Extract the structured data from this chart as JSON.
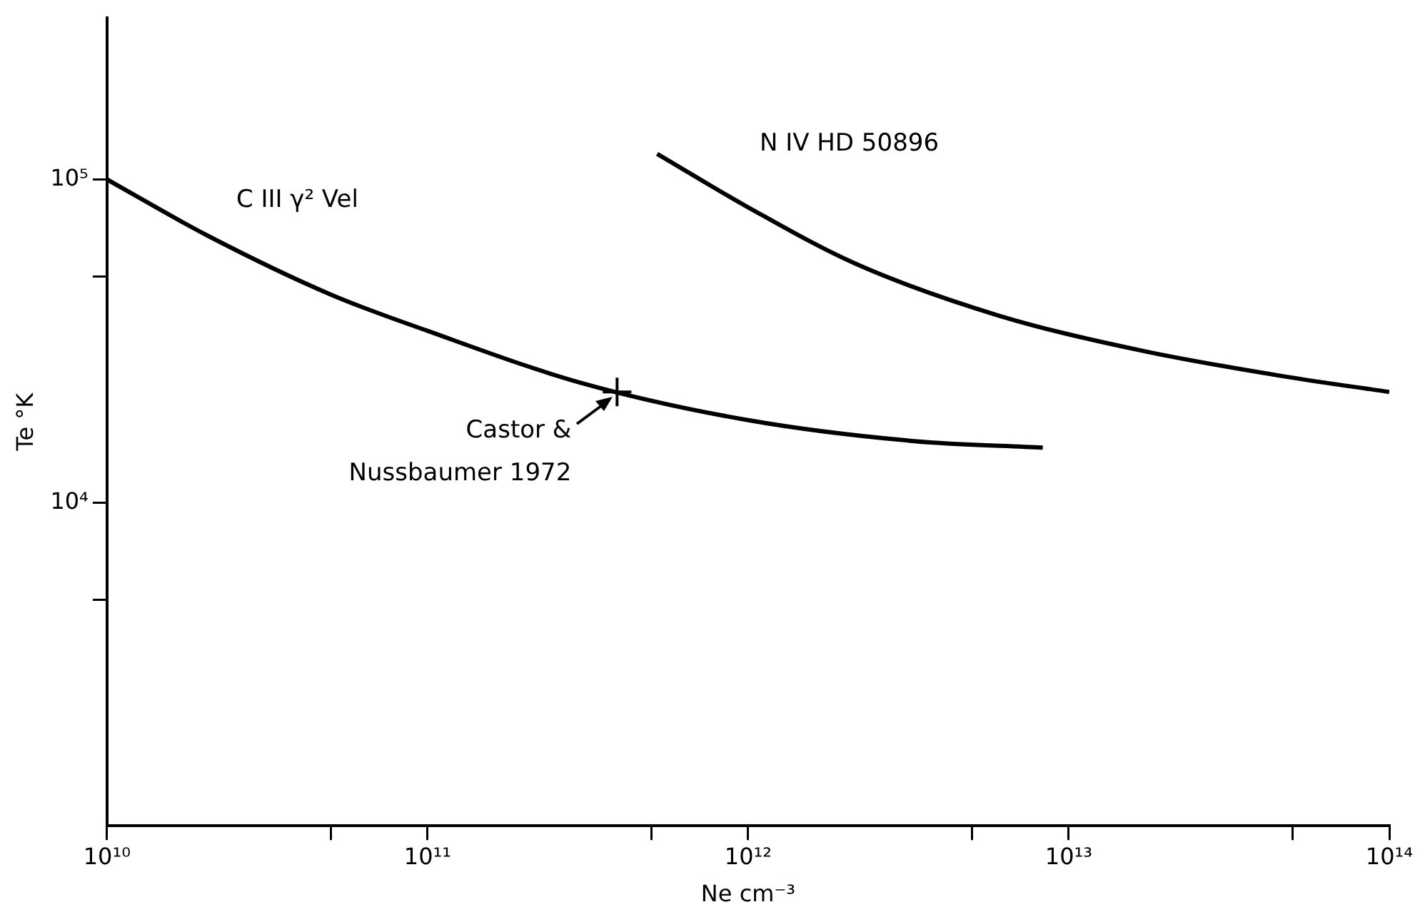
{
  "chart_data": {
    "type": "line",
    "xlabel": "Ne cm⁻³",
    "ylabel": "Te °K",
    "log": "xy",
    "grid": false,
    "legend": false,
    "line_style": "solid",
    "marker": "none",
    "xlim": [
      10000000000.0,
      100000000000000.0
    ],
    "ylim": [
      1000,
      316000
    ],
    "xticks": [
      {
        "value": 10000000000.0,
        "label": "10¹⁰"
      },
      {
        "value": 50000000000.0,
        "label": null
      },
      {
        "value": 100000000000.0,
        "label": "10¹¹"
      },
      {
        "value": 500000000000.0,
        "label": null
      },
      {
        "value": 1000000000000.0,
        "label": "10¹²"
      },
      {
        "value": 5000000000000.0,
        "label": null
      },
      {
        "value": 10000000000000.0,
        "label": "10¹³"
      },
      {
        "value": 50000000000000.0,
        "label": null
      },
      {
        "value": 100000000000000.0,
        "label": "10¹⁴"
      }
    ],
    "yticks": [
      {
        "value": 5000,
        "label": null
      },
      {
        "value": 10000,
        "label": "10⁴"
      },
      {
        "value": 50000,
        "label": null
      },
      {
        "value": 100000,
        "label": "10⁵"
      }
    ],
    "series": [
      {
        "name": "C III γ² Vel",
        "color": "#000000",
        "x": [
          10000000000.0,
          20600000000.0,
          50000000000.0,
          100000000000.0,
          300000000000.0,
          1000000000000.0,
          3300000000000.0,
          8300000000000.0
        ],
        "values": [
          100000,
          67000,
          44000,
          34000,
          23500,
          18000,
          15500,
          14800
        ]
      },
      {
        "name": "N IV HD 50896",
        "color": "#000000",
        "x": [
          520000000000.0,
          1000000000000.0,
          2150000000000.0,
          6000000000000.0,
          17000000000000.0,
          48000000000000.0,
          100000000000000.0
        ],
        "values": [
          120000,
          82000,
          55000,
          38000,
          29500,
          24500,
          22000
        ]
      },
      {
        "type": "scatter",
        "marker": "cross",
        "color": "#000000",
        "x": [
          390000000000.0
        ],
        "values": [
          22000
        ]
      }
    ],
    "annotations": [
      "Castor & Nussbaumer 1972"
    ]
  }
}
